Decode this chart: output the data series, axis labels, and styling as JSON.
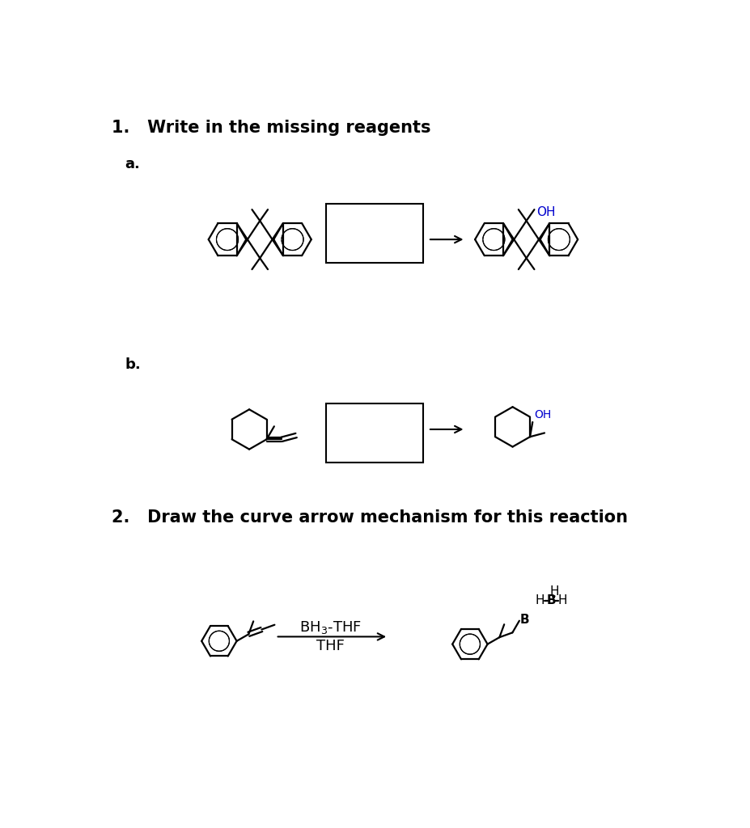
{
  "title1": "1.   Write in the missing reagents",
  "label_a": "a.",
  "label_b": "b.",
  "title2": "2.   Draw the curve arrow mechanism for this reaction",
  "oh_color": "#0000cd",
  "black": "#000000",
  "white": "#ffffff",
  "bg": "#ffffff"
}
